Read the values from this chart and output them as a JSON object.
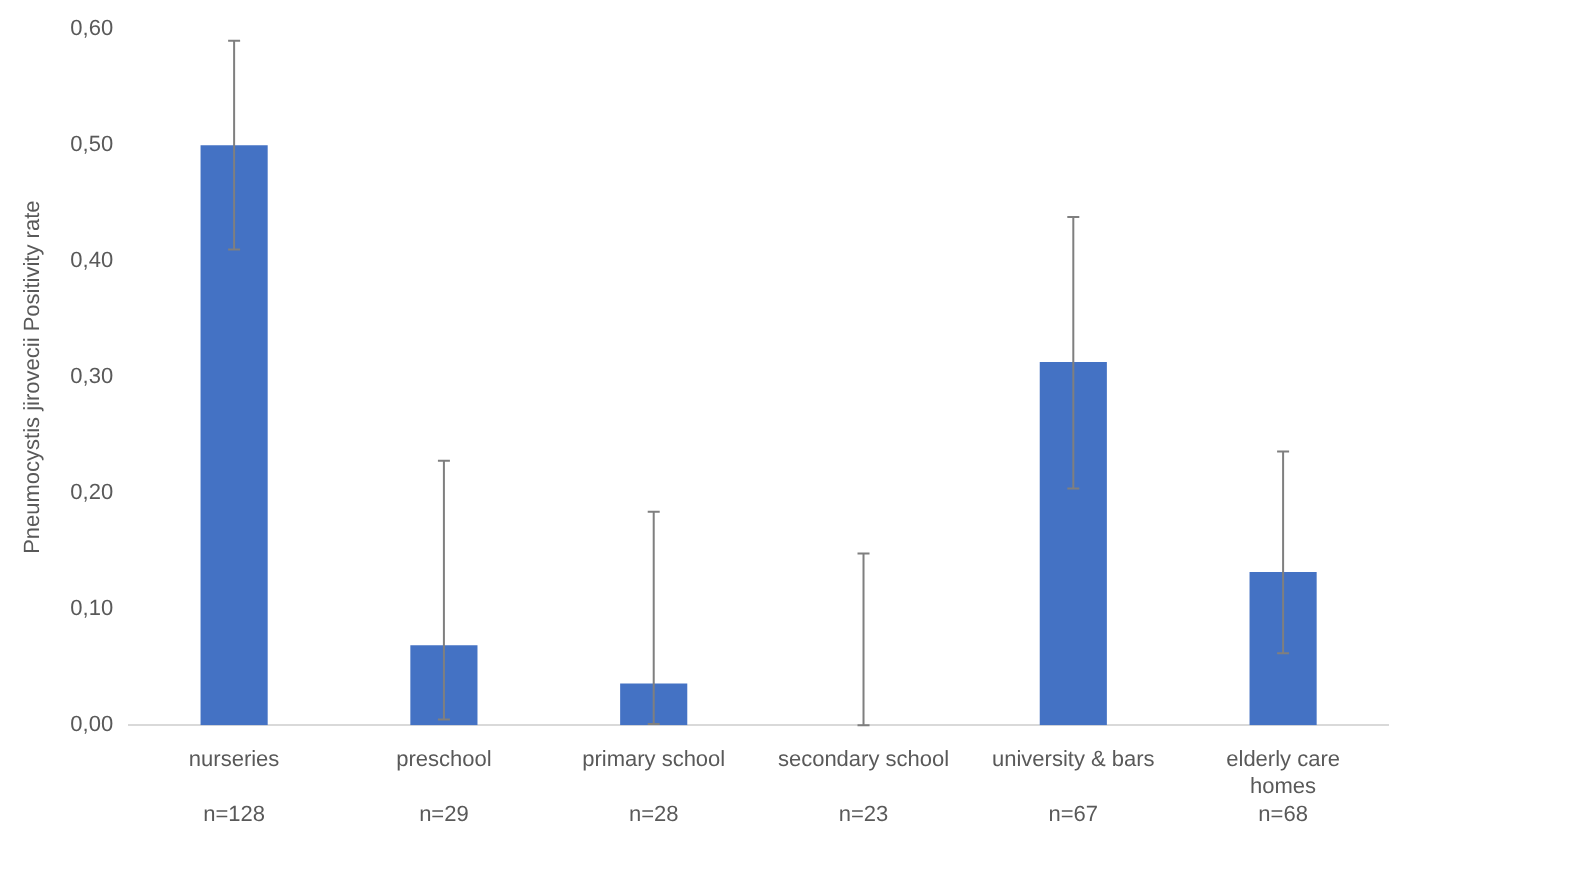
{
  "chart_data": {
    "type": "bar",
    "ylabel": "Pneumocystis jirovecii Positivity rate",
    "categories": [
      "nurseries",
      "preschool",
      "primary school",
      "secondary school",
      "university & bars",
      "elderly care homes"
    ],
    "values": [
      0.5,
      0.069,
      0.036,
      0,
      0.313,
      0.132
    ],
    "errors": [
      [
        0.41,
        0.59
      ],
      [
        0.005,
        0.228
      ],
      [
        0.001,
        0.184
      ],
      [
        0,
        0.148
      ],
      [
        0.204,
        0.438
      ],
      [
        0.062,
        0.236
      ]
    ],
    "color": "#4472c4",
    "ylim": [
      0,
      0.6
    ],
    "yticks": [
      {
        "value": 0,
        "label": "0,00"
      },
      {
        "value": 0.1,
        "label": "0,10"
      },
      {
        "value": 0.2,
        "label": "0,20"
      },
      {
        "value": 0.3,
        "label": "0,30"
      },
      {
        "value": 0.4,
        "label": "0,40"
      },
      {
        "value": 0.5,
        "label": "0,50"
      },
      {
        "value": 0.6,
        "label": "0,60"
      }
    ],
    "grid": false,
    "legend": false,
    "annotations": [
      "n=128",
      "n=29",
      "n=28",
      "n=23",
      "n=67",
      "n=68"
    ]
  }
}
